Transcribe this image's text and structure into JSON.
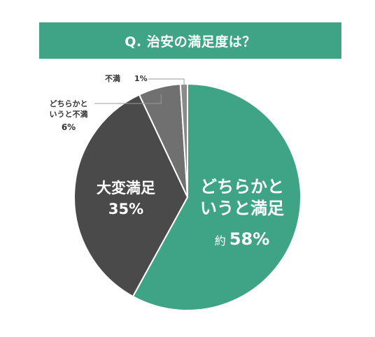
{
  "title": "Q. 治安の満足度は？",
  "chart_data": {
    "type": "pie",
    "title": "Q. 治安の満足度は？",
    "slices": [
      {
        "label": "どちらかと いうと満足",
        "label_lines": [
          "どちらかと",
          "いうと満足"
        ],
        "value_text": "約 58%",
        "prefix": "約",
        "pct_text": "58%",
        "value": 58,
        "color": "#3fa386"
      },
      {
        "label": "大変満足",
        "label_lines": [
          "大変満足"
        ],
        "value_text": "35%",
        "pct_text": "35%",
        "value": 35,
        "color": "#4a4a4a"
      },
      {
        "label": "どちらかと いうと不満",
        "label_lines": [
          "どちらかと",
          "いうと不満"
        ],
        "value_text": "6%",
        "pct_text": "6%",
        "value": 6,
        "color": "#707070"
      },
      {
        "label": "不満",
        "label_lines": [
          "不満"
        ],
        "value_text": "1%",
        "pct_text": "1%",
        "value": 1,
        "color": "#8a8a8a"
      }
    ]
  }
}
